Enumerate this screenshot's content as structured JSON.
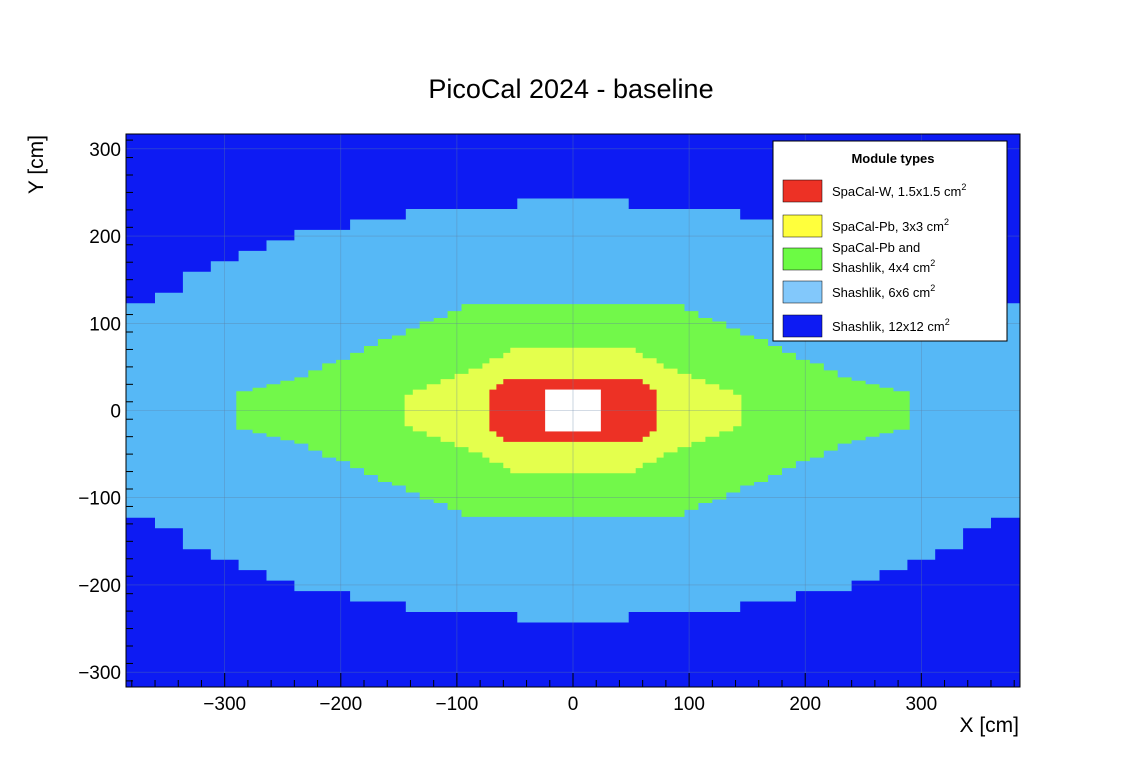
{
  "chart_data": {
    "type": "heatmap",
    "title": "PicoCal 2024 - baseline",
    "xlabel": "X [cm]",
    "ylabel": "Y [cm]",
    "xlim": [
      -385,
      385
    ],
    "ylim": [
      -317,
      317
    ],
    "x_ticks": [
      -300,
      -200,
      -100,
      0,
      100,
      200,
      300
    ],
    "x_tick_labels": [
      "−300",
      "−200",
      "−100",
      "0",
      "100",
      "200",
      "300"
    ],
    "y_ticks": [
      300,
      200,
      100,
      0,
      -100,
      -200,
      -300
    ],
    "y_tick_labels": [
      "300",
      "200",
      "100",
      "0",
      "−100",
      "−200",
      "−300"
    ],
    "grid": true,
    "legend_position": "top-right",
    "legend": {
      "title": "Module types",
      "entries": [
        {
          "key": "spacal_w",
          "color": "#ed3125",
          "label": "SpaCal-W, 1.5x1.5 cm",
          "sup": "2"
        },
        {
          "key": "spacal_pb",
          "color": "#ffff3c",
          "label": "SpaCal-Pb, 3x3 cm",
          "sup": "2"
        },
        {
          "key": "spacal_pb_shashlik",
          "color": "#6cfb44",
          "label": "SpaCal-Pb and",
          "label2": "Shashlik, 4x4 cm",
          "sup": "2"
        },
        {
          "key": "shashlik_6",
          "color": "#82c8fb",
          "label": "Shashlik, 6x6 cm",
          "sup": "2"
        },
        {
          "key": "shashlik_12",
          "color": "#0d1bf3",
          "label": "Shashlik, 12x12 cm",
          "sup": "2"
        }
      ]
    },
    "regions": [
      {
        "type": "Shashlik, 12x12 cm",
        "color": "#0d1bf3",
        "x_range": [
          -385,
          385
        ],
        "y_range": [
          -317,
          317
        ]
      },
      {
        "type": "Shashlik, 6x6 cm",
        "color": "#56b8f6",
        "half_extent_profile": [
          [
            0,
            243
          ],
          [
            36,
            243
          ],
          [
            48,
            231
          ],
          [
            72,
            231
          ],
          [
            96,
            231
          ],
          [
            120,
            231
          ],
          [
            144,
            219
          ],
          [
            168,
            219
          ],
          [
            192,
            207
          ],
          [
            216,
            207
          ],
          [
            240,
            195
          ],
          [
            264,
            183
          ],
          [
            288,
            171
          ],
          [
            312,
            159
          ],
          [
            336,
            135
          ],
          [
            360,
            123
          ],
          [
            385,
            99
          ]
        ],
        "note_inner_hole": "Y extent shown as half-height at |X|"
      },
      {
        "type": "SpaCal-Pb and Shashlik, 4x4 cm",
        "color": "#72f84a",
        "half_extent_profile": [
          [
            0,
            122
          ],
          [
            84,
            122
          ],
          [
            96,
            114
          ],
          [
            108,
            106
          ],
          [
            120,
            102
          ],
          [
            132,
            94
          ],
          [
            144,
            86
          ],
          [
            156,
            82
          ],
          [
            168,
            74
          ],
          [
            180,
            66
          ],
          [
            192,
            58
          ],
          [
            204,
            54
          ],
          [
            216,
            46
          ],
          [
            228,
            38
          ],
          [
            240,
            34
          ],
          [
            252,
            30
          ],
          [
            264,
            26
          ],
          [
            276,
            22
          ],
          [
            290,
            22
          ]
        ]
      },
      {
        "type": "SpaCal-Pb, 3x3 cm",
        "color": "#e4ff4d",
        "half_extent_profile": [
          [
            0,
            72
          ],
          [
            48,
            72
          ],
          [
            54,
            66
          ],
          [
            60,
            60
          ],
          [
            72,
            54
          ],
          [
            78,
            48
          ],
          [
            90,
            42
          ],
          [
            102,
            36
          ],
          [
            114,
            30
          ],
          [
            126,
            24
          ],
          [
            138,
            18
          ],
          [
            145,
            12
          ]
        ]
      },
      {
        "type": "SpaCal-W, 1.5x1.5 cm",
        "color": "#ed3125",
        "half_extent_profile": [
          [
            0,
            36
          ],
          [
            48,
            36
          ],
          [
            60,
            30
          ],
          [
            66,
            24
          ],
          [
            72,
            12
          ]
        ]
      },
      {
        "type": "beam hole",
        "color": "#ffffff",
        "x_range": [
          -24,
          24
        ],
        "y_range": [
          -24,
          24
        ]
      }
    ]
  }
}
